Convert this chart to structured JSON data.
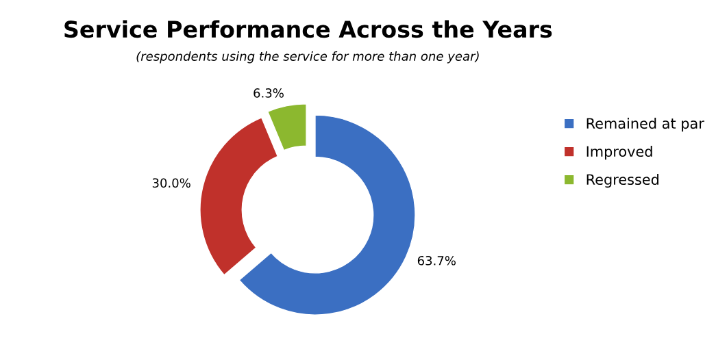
{
  "chart_data": {
    "type": "donut",
    "title": "Service Performance Across the Years",
    "subtitle": "(respondents using the service for more than one year)",
    "categories": [
      "Remained at par",
      "Improved",
      "Regressed"
    ],
    "values": [
      63.7,
      30.0,
      6.3
    ],
    "value_labels": [
      "63.7%",
      "30.0%",
      "6.3%"
    ],
    "colors": [
      "#3b6fc2",
      "#c0312b",
      "#8cb82f"
    ],
    "legend": "right"
  }
}
